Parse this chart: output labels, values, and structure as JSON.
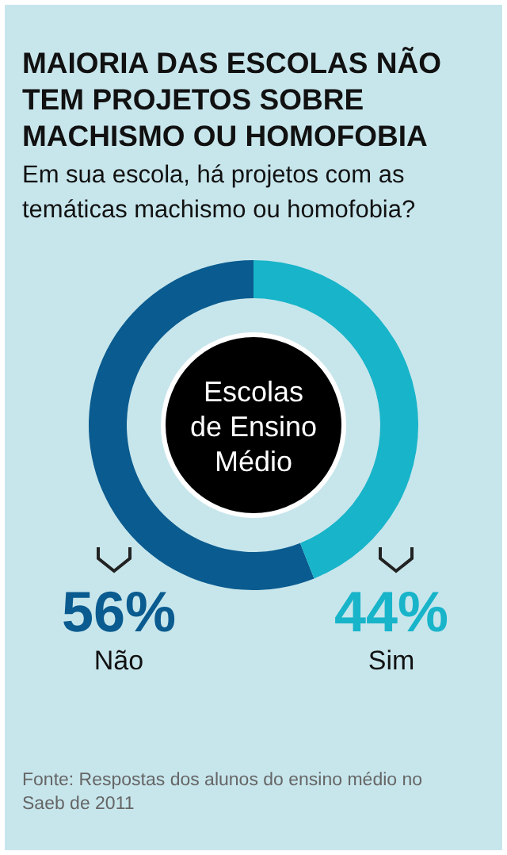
{
  "chart_data": {
    "type": "donut",
    "title": "MAIORIA DAS ESCOLAS NÃO TEM PROJETOS SOBRE MACHISMO OU HOMOFOBIA",
    "subtitle": "Em sua escola, há projetos com as temáticas machismo ou homofobia?",
    "categories": [
      "Não",
      "Sim"
    ],
    "values": [
      56,
      44
    ],
    "colors": [
      "#0a5b8f",
      "#18b4c9"
    ],
    "value_labels": [
      "56%",
      "44%"
    ],
    "annotations": [
      "Escolas de Ensino Médio",
      "Fonte: Respostas dos alunos do ensino médio no Saeb de 2011"
    ]
  }
}
